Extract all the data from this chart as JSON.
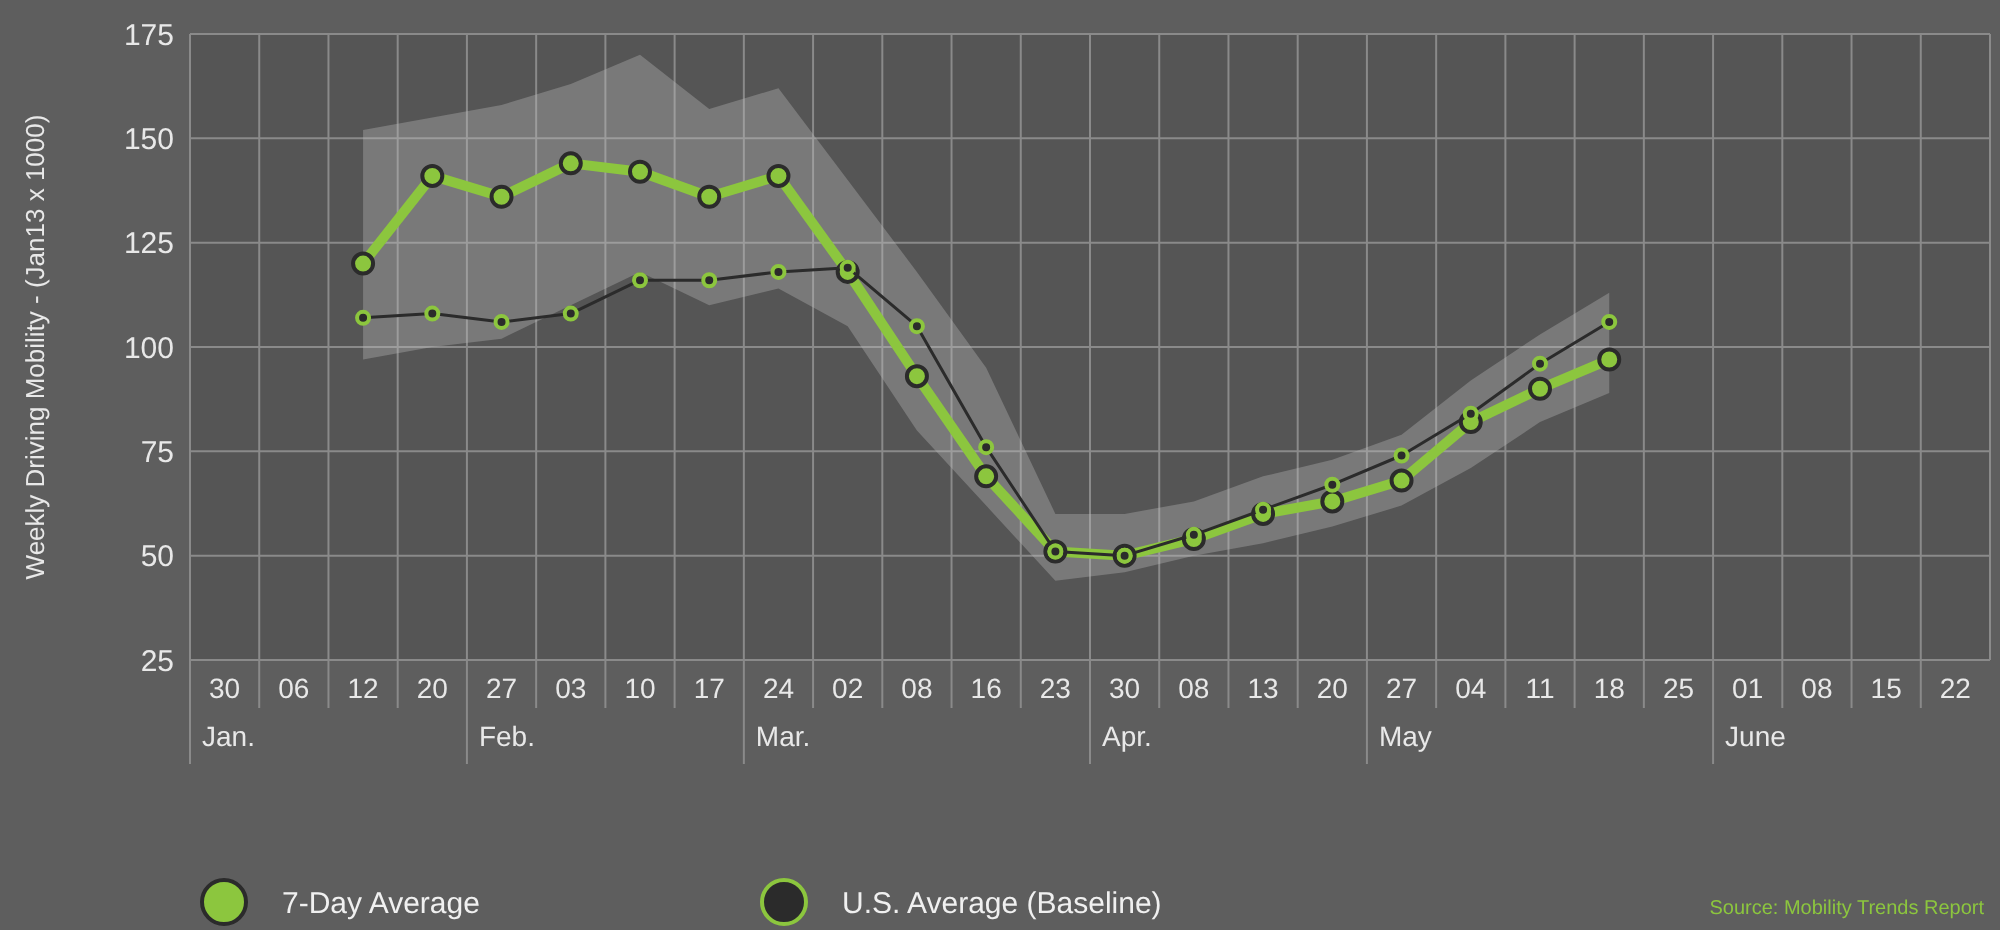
{
  "chart_data": {
    "type": "line",
    "ylabel": "Weekly Driving Mobility - (Jan13 x 1000)",
    "categories": [
      "30\nJan.",
      "06",
      "12",
      "20",
      "27\nFeb.",
      "03",
      "10",
      "17",
      "24\nMar.",
      "02",
      "08",
      "16",
      "23",
      "30\nApr.",
      "08",
      "13",
      "20",
      "27\nMay",
      "04",
      "11",
      "18",
      "25",
      "01\nJune",
      "08",
      "15",
      "22"
    ],
    "series": [
      {
        "name": "7-Day Average",
        "color": "#8cc63e",
        "values": [
          null,
          null,
          120,
          141,
          136,
          144,
          142,
          136,
          141,
          118,
          93,
          69,
          51,
          50,
          54,
          60,
          63,
          68,
          82,
          90,
          97,
          null,
          null,
          null,
          null,
          null
        ],
        "lower": [
          null,
          null,
          97,
          100,
          102,
          110,
          118,
          110,
          114,
          105,
          80,
          62,
          44,
          46,
          50,
          53,
          57,
          62,
          71,
          82,
          89,
          null,
          null,
          null,
          null,
          null
        ],
        "upper": [
          null,
          null,
          152,
          155,
          158,
          163,
          170,
          157,
          162,
          140,
          118,
          95,
          60,
          60,
          63,
          69,
          73,
          79,
          92,
          103,
          113,
          null,
          null,
          null,
          null,
          null
        ]
      },
      {
        "name": "U.S. Average (Baseline)",
        "color": "#2b2b2b",
        "values": [
          null,
          null,
          107,
          108,
          106,
          108,
          116,
          116,
          118,
          119,
          105,
          76,
          51,
          50,
          55,
          61,
          67,
          74,
          84,
          96,
          106,
          null,
          null,
          null,
          null,
          null
        ]
      }
    ],
    "ylim": [
      25,
      175
    ],
    "yticks": [
      25,
      50,
      75,
      100,
      125,
      150,
      175
    ],
    "grid": true,
    "legend": "bottom",
    "marker": "circle",
    "annotations": [
      "Source: Mobility Trends Report"
    ]
  }
}
